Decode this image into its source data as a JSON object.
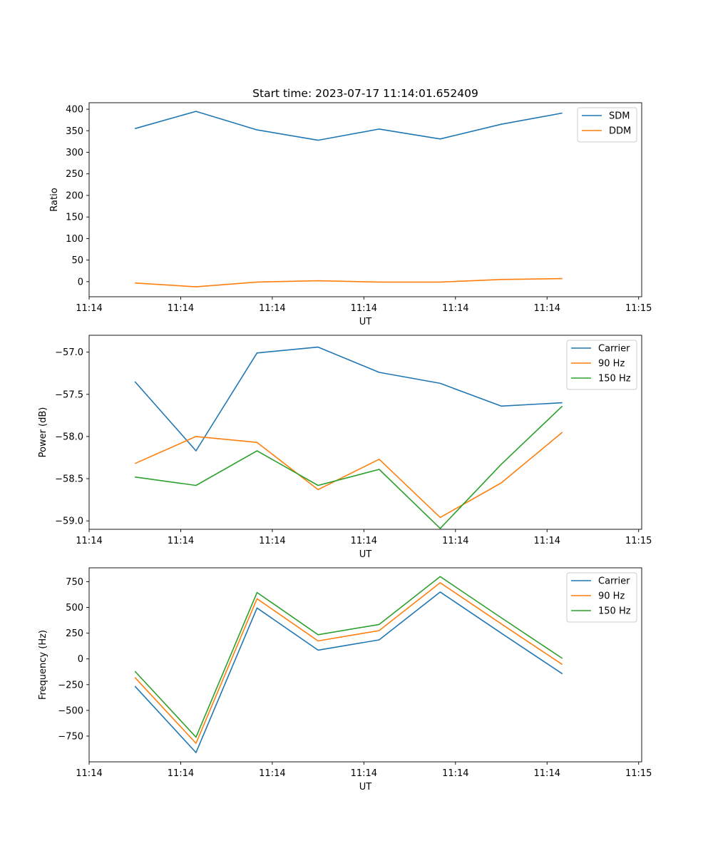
{
  "chart_data": [
    {
      "type": "line",
      "title": "Start time: 2023-07-17 11:14:01.652409",
      "xlabel": "UT",
      "ylabel": "Ratio",
      "x": [
        0,
        1,
        2,
        3,
        4,
        5,
        6,
        7
      ],
      "xlim": [
        -0.75,
        8.3
      ],
      "x_ticks": [
        -0.75,
        0.75,
        2.25,
        3.75,
        5.25,
        6.75,
        8.25
      ],
      "x_tick_labels": [
        "11:14",
        "11:14",
        "11:14",
        "11:14",
        "11:14",
        "11:14",
        "11:15"
      ],
      "ylim": [
        -35,
        415
      ],
      "y_ticks": [
        0,
        50,
        100,
        150,
        200,
        250,
        300,
        350,
        400
      ],
      "y_tick_labels": [
        "0",
        "50",
        "100",
        "150",
        "200",
        "250",
        "300",
        "350",
        "400"
      ],
      "legend_position": "top-right",
      "series": [
        {
          "name": "SDM",
          "color": "#1f77b4",
          "values": [
            355,
            395,
            352,
            328,
            354,
            331,
            365,
            391
          ]
        },
        {
          "name": "DDM",
          "color": "#ff7f0e",
          "values": [
            -3,
            -12,
            -1,
            2,
            -1,
            -1,
            5,
            7
          ]
        }
      ]
    },
    {
      "type": "line",
      "title": "",
      "xlabel": "UT",
      "ylabel": "Power (dB)",
      "x": [
        0,
        1,
        2,
        3,
        4,
        5,
        6,
        7
      ],
      "xlim": [
        -0.75,
        8.3
      ],
      "x_ticks": [
        -0.75,
        0.75,
        2.25,
        3.75,
        5.25,
        6.75,
        8.25
      ],
      "x_tick_labels": [
        "11:14",
        "11:14",
        "11:14",
        "11:14",
        "11:14",
        "11:14",
        "11:15"
      ],
      "ylim": [
        -59.1,
        -56.8
      ],
      "y_ticks": [
        -59.0,
        -58.5,
        -58.0,
        -57.5,
        -57.0
      ],
      "y_tick_labels": [
        "−59.0",
        "−58.5",
        "−58.0",
        "−57.5",
        "−57.0"
      ],
      "legend_position": "top-right",
      "series": [
        {
          "name": "Carrier",
          "color": "#1f77b4",
          "values": [
            -57.35,
            -58.17,
            -57.01,
            -56.94,
            -57.24,
            -57.37,
            -57.64,
            -57.6
          ]
        },
        {
          "name": "90 Hz",
          "color": "#ff7f0e",
          "values": [
            -58.32,
            -58.0,
            -58.07,
            -58.63,
            -58.27,
            -58.96,
            -58.55,
            -57.95
          ]
        },
        {
          "name": "150 Hz",
          "color": "#2ca02c",
          "values": [
            -58.48,
            -58.58,
            -58.17,
            -58.58,
            -58.39,
            -59.09,
            -58.33,
            -57.64
          ]
        }
      ]
    },
    {
      "type": "line",
      "title": "",
      "xlabel": "UT",
      "ylabel": "Frequency (Hz)",
      "x": [
        0,
        1,
        2,
        3,
        4,
        5,
        6,
        7
      ],
      "xlim": [
        -0.75,
        8.3
      ],
      "x_ticks": [
        -0.75,
        0.75,
        2.25,
        3.75,
        5.25,
        6.75,
        8.25
      ],
      "x_tick_labels": [
        "11:14",
        "11:14",
        "11:14",
        "11:14",
        "11:14",
        "11:14",
        "11:15"
      ],
      "ylim": [
        -1000,
        885
      ],
      "y_ticks": [
        -750,
        -500,
        -250,
        0,
        250,
        500,
        750
      ],
      "y_tick_labels": [
        "−750",
        "−500",
        "−250",
        "0",
        "250",
        "500",
        "750"
      ],
      "legend_position": "top-right",
      "series": [
        {
          "name": "Carrier",
          "color": "#1f77b4",
          "values": [
            -265,
            -910,
            495,
            85,
            185,
            650,
            250,
            -145
          ]
        },
        {
          "name": "90 Hz",
          "color": "#ff7f0e",
          "values": [
            -180,
            -820,
            585,
            175,
            275,
            740,
            340,
            -55
          ]
        },
        {
          "name": "150 Hz",
          "color": "#2ca02c",
          "values": [
            -120,
            -760,
            645,
            235,
            335,
            800,
            400,
            5
          ]
        }
      ]
    }
  ]
}
